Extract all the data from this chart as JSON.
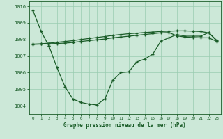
{
  "xlabel": "Graphe pression niveau de la mer (hPa)",
  "background_color": "#cce8d8",
  "grid_color": "#99ccb0",
  "line_color": "#1a5c28",
  "ylim": [
    1003.5,
    1010.3
  ],
  "yticks": [
    1004,
    1005,
    1006,
    1007,
    1008,
    1009,
    1010
  ],
  "xlim": [
    -0.5,
    23.5
  ],
  "line1_x": [
    0,
    1,
    2
  ],
  "line1_y": [
    1009.75,
    1008.5,
    1007.6
  ],
  "line2_x": [
    2,
    3,
    4,
    5,
    6,
    7,
    8,
    9,
    10,
    11,
    12,
    13,
    14,
    15,
    16,
    17,
    18,
    19,
    20,
    21,
    22,
    23
  ],
  "line2_y": [
    1007.6,
    1006.3,
    1005.15,
    1004.4,
    1004.2,
    1004.1,
    1004.05,
    1004.42,
    1005.55,
    1006.0,
    1006.05,
    1006.65,
    1006.82,
    1007.12,
    1007.9,
    1008.1,
    1008.3,
    1008.2,
    1008.2,
    1008.2,
    1008.42,
    1007.9
  ],
  "line3_x": [
    0,
    1,
    2,
    3,
    4,
    5,
    6,
    7,
    8,
    9,
    10,
    11,
    12,
    13,
    14,
    15,
    16,
    17,
    18,
    19,
    20,
    21,
    22,
    23
  ],
  "line3_y": [
    1007.7,
    1007.72,
    1007.74,
    1007.76,
    1007.78,
    1007.82,
    1007.88,
    1007.93,
    1007.98,
    1008.03,
    1008.1,
    1008.15,
    1008.2,
    1008.25,
    1008.3,
    1008.35,
    1008.4,
    1008.42,
    1008.22,
    1008.15,
    1008.12,
    1008.1,
    1008.1,
    1007.88
  ],
  "line4_x": [
    0,
    1,
    2,
    3,
    4,
    5,
    6,
    7,
    8,
    9,
    10,
    11,
    12,
    13,
    14,
    15,
    16,
    17,
    18,
    19,
    20,
    21,
    22,
    23
  ],
  "line4_y": [
    1007.72,
    1007.74,
    1007.78,
    1007.83,
    1007.88,
    1007.93,
    1008.0,
    1008.06,
    1008.12,
    1008.18,
    1008.25,
    1008.3,
    1008.35,
    1008.38,
    1008.42,
    1008.45,
    1008.48,
    1008.5,
    1008.52,
    1008.52,
    1008.5,
    1008.48,
    1008.4,
    1007.95
  ]
}
